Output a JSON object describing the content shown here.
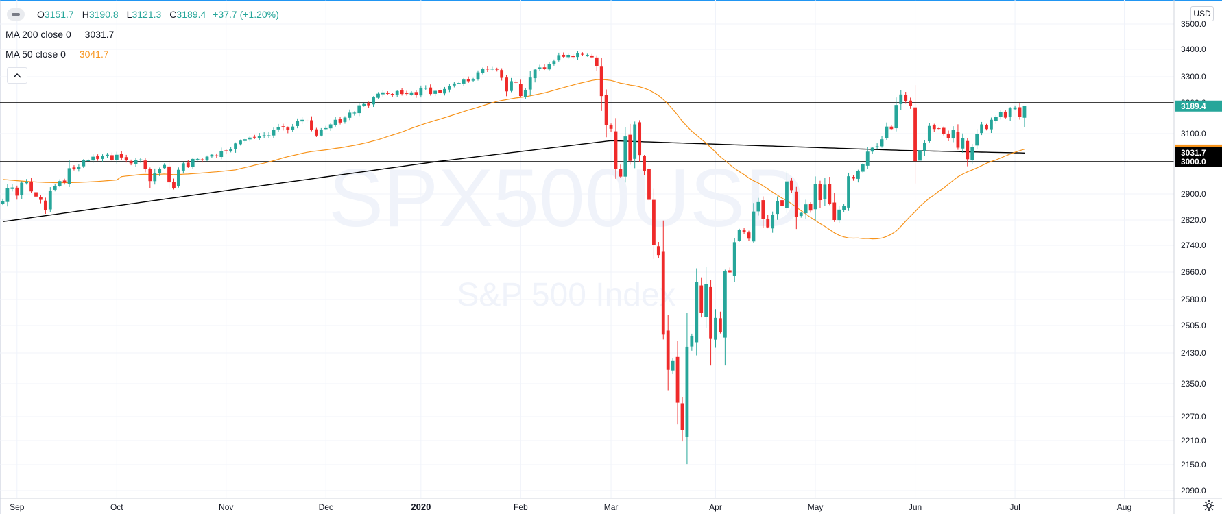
{
  "legend": {
    "open_label": "O",
    "open": "3151.7",
    "high_label": "H",
    "high": "3190.8",
    "low_label": "L",
    "low": "3121.3",
    "close_label": "C",
    "close": "3189.4",
    "change": "+37.7 (+1.20%)",
    "ma200_label": "MA 200 close 0",
    "ma200_value": "3031.7",
    "ma50_label": "MA 50 close 0",
    "ma50_value": "3041.7"
  },
  "currency": "USD",
  "watermark": {
    "symbol": "SPX500USD",
    "name": "S&P 500 Index"
  },
  "colors": {
    "up": "#26a69a",
    "down": "#ef2a2a",
    "ma50": "#f7931a",
    "ma200": "#000000",
    "accent": "#2196f3"
  },
  "chart_data": {
    "type": "candlestick",
    "y_ticks": [
      3500,
      3400,
      3300,
      3200,
      3100,
      3000,
      2900,
      2820,
      2740,
      2660,
      2580,
      2505,
      2430,
      2350,
      2270,
      2210,
      2150,
      2090
    ],
    "y_tick_labels": [
      "3500.0",
      "3400.0",
      "3300.0",
      "3200.0",
      "3100.0",
      "3000.0",
      "2900.0",
      "2820.0",
      "2740.0",
      "2660.0",
      "2580.0",
      "2505.0",
      "2430.0",
      "2350.0",
      "2270.0",
      "2210.0",
      "2150.0",
      "2090.0"
    ],
    "x_labels": [
      {
        "label": "Sep",
        "bar": 3
      },
      {
        "label": "Oct",
        "bar": 24
      },
      {
        "label": "Nov",
        "bar": 47
      },
      {
        "label": "Dec",
        "bar": 68
      },
      {
        "label": "2020",
        "bar": 88,
        "bold": true
      },
      {
        "label": "Feb",
        "bar": 109
      },
      {
        "label": "Mar",
        "bar": 128
      },
      {
        "label": "Apr",
        "bar": 150
      },
      {
        "label": "May",
        "bar": 171
      },
      {
        "label": "Jun",
        "bar": 192
      },
      {
        "label": "Jul",
        "bar": 213
      },
      {
        "label": "Aug",
        "bar": 236
      }
    ],
    "horizontal_levels": [
      3200,
      3000
    ],
    "price_tags": [
      {
        "label": "3189.4",
        "value": 3189.4,
        "color": "#26a69a",
        "text_color": "#ffffff"
      },
      {
        "label": "3041.7",
        "value": 3041.7,
        "color": "#f7931a",
        "text_color": "#ffffff",
        "hidden_under": true
      },
      {
        "label": "3031.7",
        "value": 3031.7,
        "color": "#000000",
        "text_color": "#ffffff"
      },
      {
        "label": "3000.0",
        "value": 3000.0,
        "color": "#000000",
        "text_color": "#ffffff"
      }
    ],
    "closes": [
      2878,
      2918,
      2920,
      2895,
      2935,
      2938,
      2908,
      2892,
      2882,
      2850,
      2910,
      2925,
      2940,
      2935,
      2980,
      2978,
      2985,
      3005,
      3005,
      3018,
      3010,
      3020,
      3025,
      3007,
      3025,
      3015,
      3005,
      2995,
      3006,
      3008,
      2978,
      2940,
      2965,
      2978,
      2990,
      2936,
      2919,
      2975,
      2995,
      2985,
      3010,
      3010,
      3007,
      3018,
      3025,
      3020,
      3039,
      3037,
      3045,
      3065,
      3075,
      3080,
      3086,
      3087,
      3092,
      3094,
      3094,
      3112,
      3121,
      3120,
      3112,
      3123,
      3140,
      3145,
      3140,
      3113,
      3093,
      3112,
      3118,
      3130,
      3145,
      3136,
      3152,
      3168,
      3168,
      3192,
      3196,
      3192,
      3221,
      3235,
      3240,
      3235,
      3230,
      3245,
      3234,
      3234,
      3240,
      3230,
      3258,
      3257,
      3234,
      3246,
      3237,
      3253,
      3265,
      3274,
      3276,
      3289,
      3283,
      3289,
      3316,
      3330,
      3327,
      3329,
      3326,
      3296,
      3244,
      3283,
      3278,
      3226,
      3249,
      3297,
      3326,
      3334,
      3328,
      3345,
      3357,
      3379,
      3373,
      3380,
      3372,
      3386,
      3381,
      3380,
      3371,
      3338,
      3226,
      3128,
      3116,
      2978,
      2954,
      3090,
      3003,
      3130,
      3024,
      2972,
      2882,
      2741,
      2711,
      2480,
      2386,
      2409,
      2304,
      2237,
      2447,
      2475,
      2630,
      2541,
      2626,
      2470,
      2527,
      2488,
      2663,
      2659,
      2750,
      2789,
      2783,
      2761,
      2846,
      2875,
      2823,
      2797,
      2836,
      2878,
      2863,
      2939,
      2912,
      2830,
      2842,
      2868,
      2849,
      2930,
      2881,
      2929,
      2870,
      2820,
      2852,
      2864,
      2955,
      2948,
      2971,
      2992,
      3036,
      3050,
      3055,
      3080,
      3123,
      3115,
      3193,
      3232,
      3207,
      3190,
      3002,
      3041,
      3066,
      3125,
      3115,
      3117,
      3098,
      3083,
      3113,
      3050,
      3083,
      3009,
      3053,
      3100,
      3130,
      3115,
      3145,
      3155,
      3169,
      3152,
      3182,
      3185,
      3155,
      3189.4
    ],
    "bars_total": 248,
    "bars_visible_start": -2
  }
}
